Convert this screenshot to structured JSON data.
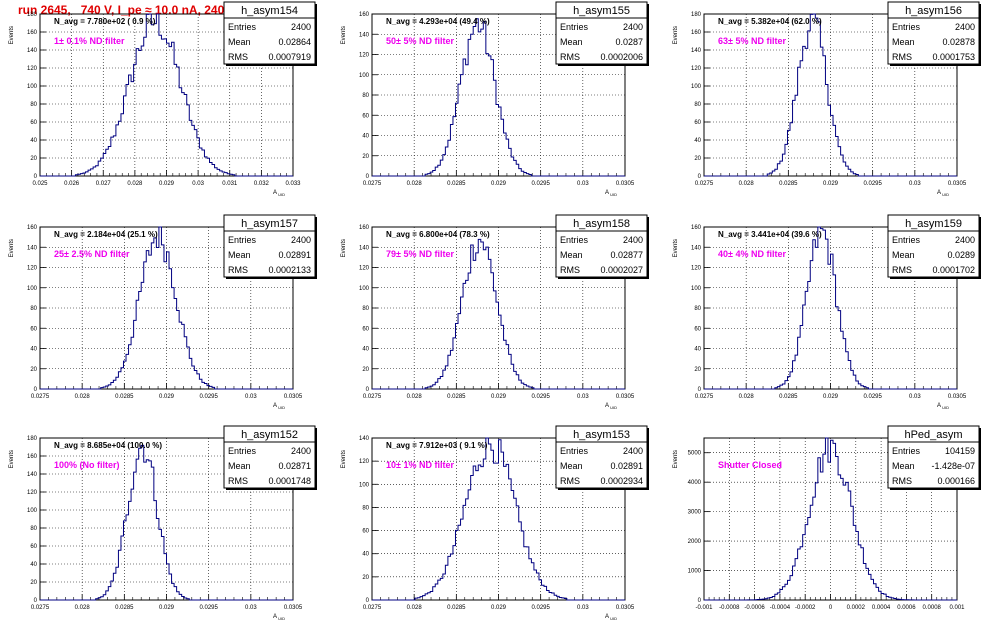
{
  "canvas_title": "run 2645,   740 V, I_pe ≈ 10.0 nA, 240 Hz",
  "chart_data": [
    {
      "type": "bar",
      "name": "h_asym154",
      "nlabel": "N_avg = 7.780e+02 ( 0.9 %)",
      "filter": "1± 0.1% ND filter",
      "stats": [
        [
          "Entries",
          "2400"
        ],
        [
          "Mean",
          "0.02864"
        ],
        [
          "RMS",
          "0.0007919"
        ]
      ],
      "xticks": [
        "0.025",
        "0.026",
        "0.027",
        "0.028",
        "0.029",
        "0.03",
        "0.031",
        "0.032",
        "0.033"
      ],
      "yticks": [
        "0",
        "20",
        "40",
        "60",
        "80",
        "100",
        "120",
        "140",
        "160",
        "180"
      ],
      "ymax": 180,
      "xlabel": "A_UID",
      "ylabel": "Events",
      "mean_frac": 0.455,
      "sigma_frac": 0.1,
      "peak": 172
    },
    {
      "type": "bar",
      "name": "h_asym155",
      "nlabel": "N_avg = 4.293e+04 (49.4 %)",
      "filter": "50± 5% ND filter",
      "stats": [
        [
          "Entries",
          "2400"
        ],
        [
          "Mean",
          "0.0287"
        ],
        [
          "RMS",
          "0.0002006"
        ]
      ],
      "xticks": [
        "0.0275",
        "0.028",
        "0.0285",
        "0.029",
        "0.0295",
        "0.03",
        "0.0305"
      ],
      "yticks": [
        "0",
        "20",
        "40",
        "60",
        "80",
        "100",
        "120",
        "140",
        "160"
      ],
      "ymax": 160,
      "xlabel": "A_UID",
      "ylabel": "Events",
      "mean_frac": 0.418,
      "sigma_frac": 0.068,
      "peak": 150
    },
    {
      "type": "bar",
      "name": "h_asym156",
      "nlabel": "N_avg = 5.382e+04 (62.0 %)",
      "filter": "63± 5% ND filter",
      "stats": [
        [
          "Entries",
          "2400"
        ],
        [
          "Mean",
          "0.02878"
        ],
        [
          "RMS",
          "0.0001753"
        ]
      ],
      "xticks": [
        "0.0275",
        "0.028",
        "0.0285",
        "0.029",
        "0.0295",
        "0.03",
        "0.0305"
      ],
      "yticks": [
        "0",
        "20",
        "40",
        "60",
        "80",
        "100",
        "120",
        "140",
        "160",
        "180"
      ],
      "ymax": 180,
      "xlabel": "A_UID",
      "ylabel": "Events",
      "mean_frac": 0.428,
      "sigma_frac": 0.058,
      "peak": 172
    },
    {
      "type": "bar",
      "name": "h_asym157",
      "nlabel": "N_avg = 2.184e+04 (25.1 %)",
      "filter": "25± 2.5% ND filter",
      "stats": [
        [
          "Entries",
          "2400"
        ],
        [
          "Mean",
          "0.02891"
        ],
        [
          "RMS",
          "0.0002133"
        ]
      ],
      "xticks": [
        "0.0275",
        "0.028",
        "0.0285",
        "0.029",
        "0.0295",
        "0.03",
        "0.0305"
      ],
      "yticks": [
        "0",
        "20",
        "40",
        "60",
        "80",
        "100",
        "120",
        "140",
        "160"
      ],
      "ymax": 160,
      "xlabel": "A_UID",
      "ylabel": "Events",
      "mean_frac": 0.467,
      "sigma_frac": 0.072,
      "peak": 152
    },
    {
      "type": "bar",
      "name": "h_asym158",
      "nlabel": "N_avg = 6.800e+04 (78.3 %)",
      "filter": "79± 5% ND filter",
      "stats": [
        [
          "Entries",
          "2400"
        ],
        [
          "Mean",
          "0.02877"
        ],
        [
          "RMS",
          "0.0002027"
        ]
      ],
      "xticks": [
        "0.0275",
        "0.028",
        "0.0285",
        "0.029",
        "0.0295",
        "0.03",
        "0.0305"
      ],
      "yticks": [
        "0",
        "20",
        "40",
        "60",
        "80",
        "100",
        "120",
        "140",
        "160"
      ],
      "ymax": 160,
      "xlabel": "A_UID",
      "ylabel": "Events",
      "mean_frac": 0.425,
      "sigma_frac": 0.068,
      "peak": 148
    },
    {
      "type": "bar",
      "name": "h_asym159",
      "nlabel": "N_avg = 3.441e+04 (39.6 %)",
      "filter": "40± 4% ND filter",
      "stats": [
        [
          "Entries",
          "2400"
        ],
        [
          "Mean",
          "0.0289"
        ],
        [
          "RMS",
          "0.0001702"
        ]
      ],
      "xticks": [
        "0.0275",
        "0.028",
        "0.0285",
        "0.029",
        "0.0295",
        "0.03",
        "0.0305"
      ],
      "yticks": [
        "0",
        "20",
        "40",
        "60",
        "80",
        "100",
        "120",
        "140",
        "160"
      ],
      "ymax": 160,
      "xlabel": "A_UID",
      "ylabel": "Events",
      "mean_frac": 0.465,
      "sigma_frac": 0.058,
      "peak": 155
    },
    {
      "type": "bar",
      "name": "h_asym152",
      "nlabel": "N_avg = 8.685e+04 (100.0 %)",
      "filter": "100% (No filter)",
      "stats": [
        [
          "Entries",
          "2400"
        ],
        [
          "Mean",
          "0.02871"
        ],
        [
          "RMS",
          "0.0001748"
        ]
      ],
      "xticks": [
        "0.0275",
        "0.028",
        "0.0285",
        "0.029",
        "0.0295",
        "0.03",
        "0.0305"
      ],
      "yticks": [
        "0",
        "20",
        "40",
        "60",
        "80",
        "100",
        "120",
        "140",
        "160",
        "180"
      ],
      "ymax": 180,
      "xlabel": "A_UID",
      "ylabel": "Events",
      "mean_frac": 0.405,
      "sigma_frac": 0.058,
      "peak": 172
    },
    {
      "type": "bar",
      "name": "h_asym153",
      "nlabel": "N_avg = 7.912e+03 ( 9.1 %)",
      "filter": "10± 1% ND filter",
      "stats": [
        [
          "Entries",
          "2400"
        ],
        [
          "Mean",
          "0.02891"
        ],
        [
          "RMS",
          "0.0002934"
        ]
      ],
      "xticks": [
        "0.0275",
        "0.028",
        "0.0285",
        "0.029",
        "0.0295",
        "0.03",
        "0.0305"
      ],
      "yticks": [
        "0",
        "20",
        "40",
        "60",
        "80",
        "100",
        "120",
        "140"
      ],
      "ymax": 140,
      "xlabel": "A_UID",
      "ylabel": "Events",
      "mean_frac": 0.467,
      "sigma_frac": 0.098,
      "peak": 135
    },
    {
      "type": "bar",
      "name": "hPed_asym",
      "nlabel": "",
      "filter": "Shutter Closed",
      "stats": [
        [
          "Entries",
          "104159"
        ],
        [
          "Mean",
          "-1.428e-07"
        ],
        [
          "RMS",
          "0.000166"
        ]
      ],
      "xticks": [
        "-0.001",
        "-0.0008",
        "-0.0006",
        "-0.0004",
        "-0.0002",
        "0",
        "0.0002",
        "0.0004",
        "0.0006",
        "0.0008",
        "0.001"
      ],
      "yticks": [
        "0",
        "1000",
        "2000",
        "3000",
        "4000",
        "5000"
      ],
      "ymax": 5500,
      "xlabel": "",
      "ylabel": "Events",
      "mean_frac": 0.5,
      "sigma_frac": 0.083,
      "peak": 5200
    }
  ]
}
